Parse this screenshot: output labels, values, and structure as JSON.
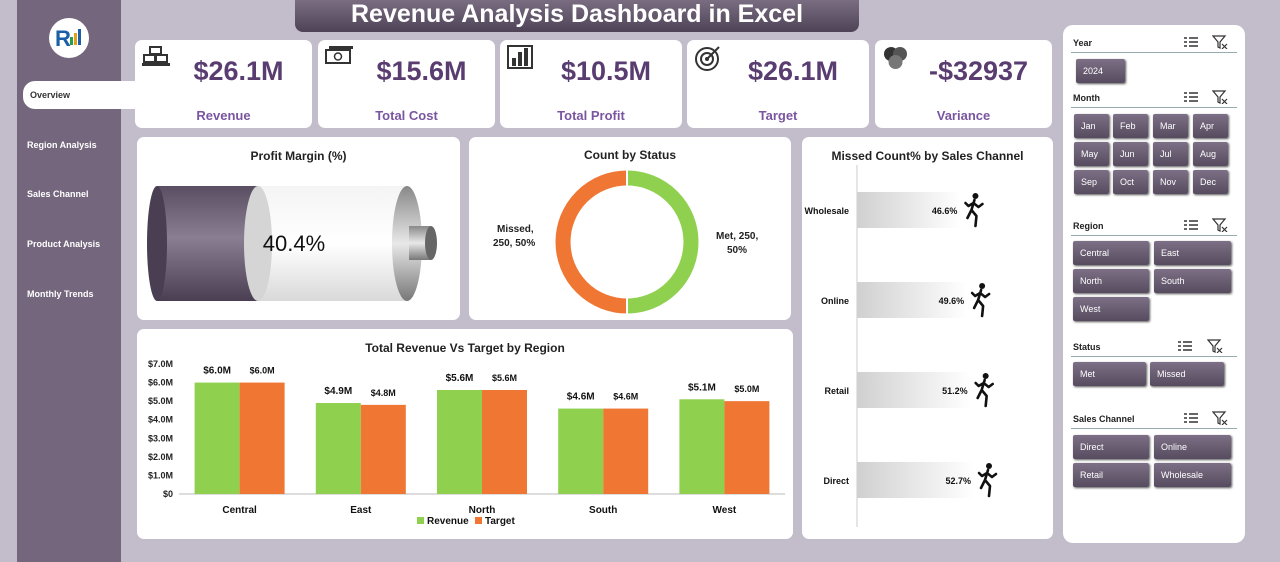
{
  "header": {
    "title": "Revenue Analysis Dashboard in Excel"
  },
  "sidebar": {
    "items": [
      {
        "label": "Overview",
        "active": true
      },
      {
        "label": "Region Analysis"
      },
      {
        "label": "Sales Channel"
      },
      {
        "label": "Product Analysis"
      },
      {
        "label": "Monthly Trends"
      }
    ]
  },
  "kpis": [
    {
      "value": "$26.1M",
      "label": "Revenue",
      "icon": "gold-bars-icon"
    },
    {
      "value": "$15.6M",
      "label": "Total Cost",
      "icon": "cash-icon"
    },
    {
      "value": "$10.5M",
      "label": "Total Profit",
      "icon": "bar-chart-icon"
    },
    {
      "value": "$26.1M",
      "label": "Target",
      "icon": "target-icon"
    },
    {
      "value": "-$32937",
      "label": "Variance",
      "icon": "venn-icon"
    }
  ],
  "profit_margin": {
    "title": "Profit Margin (%)",
    "value_text": "40.4%",
    "fraction": 0.404
  },
  "status_chart": {
    "title": "Count by Status",
    "chart_data": {
      "type": "pie",
      "categories": [
        "Met",
        "Missed"
      ],
      "values": [
        250,
        250
      ],
      "labels": [
        "Met, 250, 50%",
        "Missed, 250, 50%"
      ],
      "colors": [
        "#8fd14f",
        "#f07634"
      ]
    }
  },
  "missed_chart": {
    "title": "Missed Count% by Sales Channel",
    "chart_data": {
      "type": "bar",
      "categories": [
        "Wholesale",
        "Online",
        "Retail",
        "Direct"
      ],
      "values": [
        46.6,
        49.6,
        51.2,
        52.7
      ],
      "labels": [
        "46.6%",
        "49.6%",
        "51.2%",
        "52.7%"
      ]
    }
  },
  "region_chart": {
    "title": "Total Revenue Vs Target by Region",
    "chart_data": {
      "type": "bar",
      "categories": [
        "Central",
        "East",
        "North",
        "South",
        "West"
      ],
      "series": [
        {
          "name": "Revenue",
          "values": [
            6.0,
            4.9,
            5.6,
            4.6,
            5.1
          ],
          "labels": [
            "$6.0M",
            "$4.9M",
            "$5.6M",
            "$4.6M",
            "$5.1M"
          ],
          "color": "#8fd14f"
        },
        {
          "name": "Target",
          "values": [
            6.0,
            4.8,
            5.6,
            4.6,
            5.0
          ],
          "labels": [
            "$6.0M",
            "$4.8M",
            "$5.6M",
            "$4.6M",
            "$5.0M"
          ],
          "color": "#f07634"
        }
      ],
      "yticks": [
        "$0",
        "$1.0M",
        "$2.0M",
        "$3.0M",
        "$4.0M",
        "$5.0M",
        "$6.0M",
        "$7.0M"
      ],
      "ylim": [
        0,
        7
      ]
    }
  },
  "slicers": {
    "year": {
      "label": "Year",
      "items": [
        "2024"
      ]
    },
    "month": {
      "label": "Month",
      "items": [
        "Jan",
        "Feb",
        "Mar",
        "Apr",
        "May",
        "Jun",
        "Jul",
        "Aug",
        "Sep",
        "Oct",
        "Nov",
        "Dec"
      ]
    },
    "region": {
      "label": "Region",
      "items": [
        "Central",
        "East",
        "North",
        "South",
        "West"
      ]
    },
    "status": {
      "label": "Status",
      "items": [
        "Met",
        "Missed"
      ]
    },
    "channel": {
      "label": "Sales Channel",
      "items": [
        "Direct",
        "Online",
        "Retail",
        "Wholesale"
      ]
    }
  }
}
